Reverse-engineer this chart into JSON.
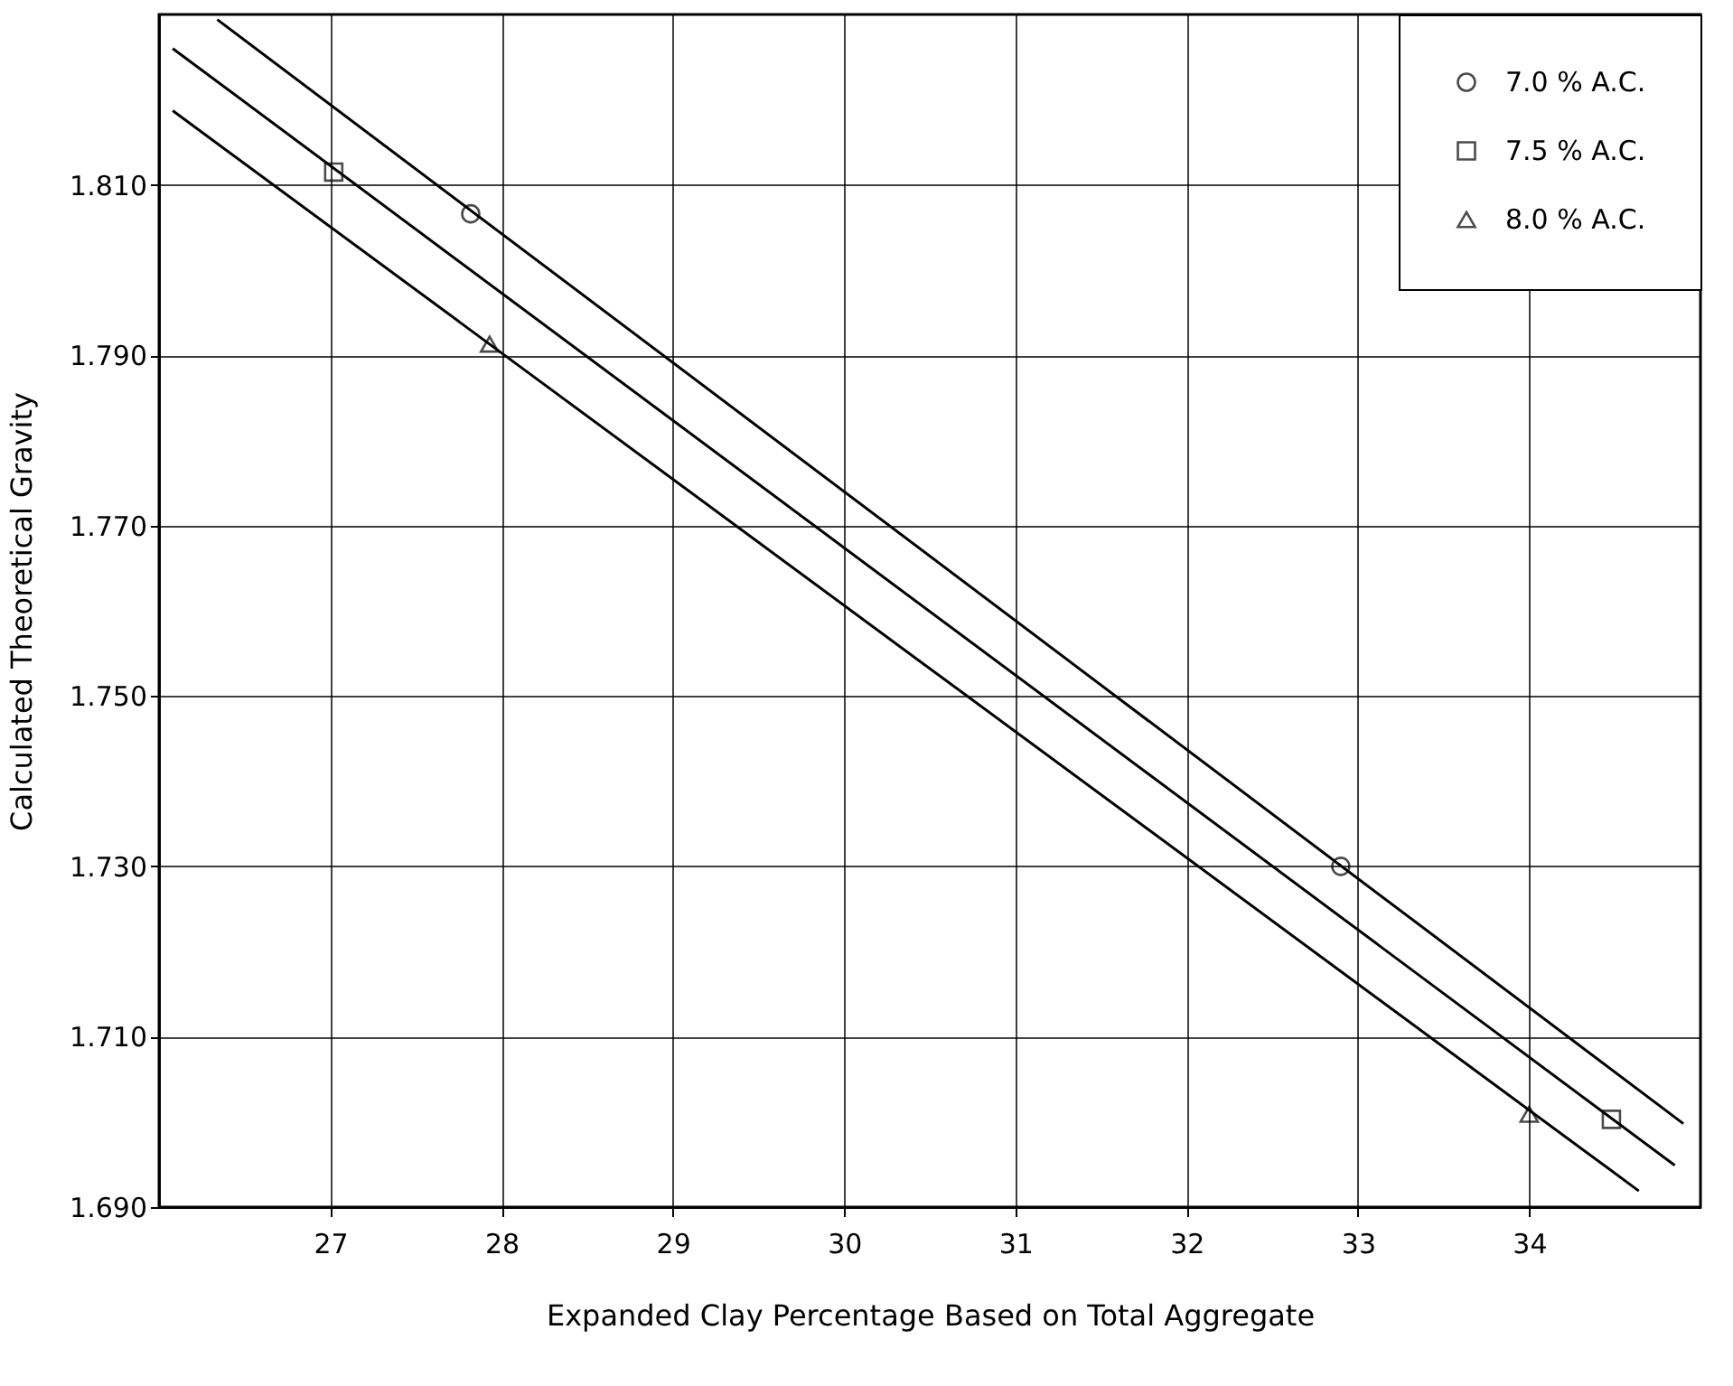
{
  "chart_data": {
    "type": "scatter",
    "xlabel": "Expanded Clay Percentage Based on Total Aggregate",
    "ylabel": "Calculated   Theoretical   Gravity",
    "xlim": [
      26,
      35
    ],
    "xticks": [
      27,
      28,
      29,
      30,
      31,
      32,
      33,
      34
    ],
    "ylim": [
      1.69,
      1.83
    ],
    "yticks": [
      {
        "value": 1.69,
        "label": "1.690"
      },
      {
        "value": 1.71,
        "label": "1.710"
      },
      {
        "value": 1.73,
        "label": "1.730"
      },
      {
        "value": 1.75,
        "label": "1.750"
      },
      {
        "value": 1.77,
        "label": "1.770"
      },
      {
        "value": 1.79,
        "label": "1.790"
      },
      {
        "value": 1.81,
        "label": "1.810"
      }
    ],
    "grid": true,
    "legend": "top right",
    "series": [
      {
        "name": "7.0 % A.C.",
        "marker": "circle",
        "color": "#000000",
        "x": [
          27.82,
          32.9
        ],
        "values": [
          1.8066,
          1.73
        ]
      },
      {
        "name": "7.5 % A.C.",
        "marker": "square",
        "color": "#000000",
        "x": [
          27.02,
          34.48
        ],
        "values": [
          1.8115,
          1.7003
        ]
      },
      {
        "name": "8.0 % A.C.",
        "marker": "triangle",
        "color": "#000000",
        "x": [
          27.93,
          34.0
        ],
        "values": [
          1.7913,
          1.7009
        ]
      },
      {
        "type": "line",
        "color": "#000000",
        "x": [
          26.34,
          34.9
        ],
        "values": [
          1.8294,
          1.6998
        ]
      },
      {
        "type": "line",
        "color": "#000000",
        "x": [
          26.08,
          34.85
        ],
        "values": [
          1.826,
          1.6949
        ]
      },
      {
        "type": "line",
        "color": "#000000",
        "x": [
          26.08,
          34.64
        ],
        "values": [
          1.8187,
          1.6919
        ]
      }
    ]
  }
}
